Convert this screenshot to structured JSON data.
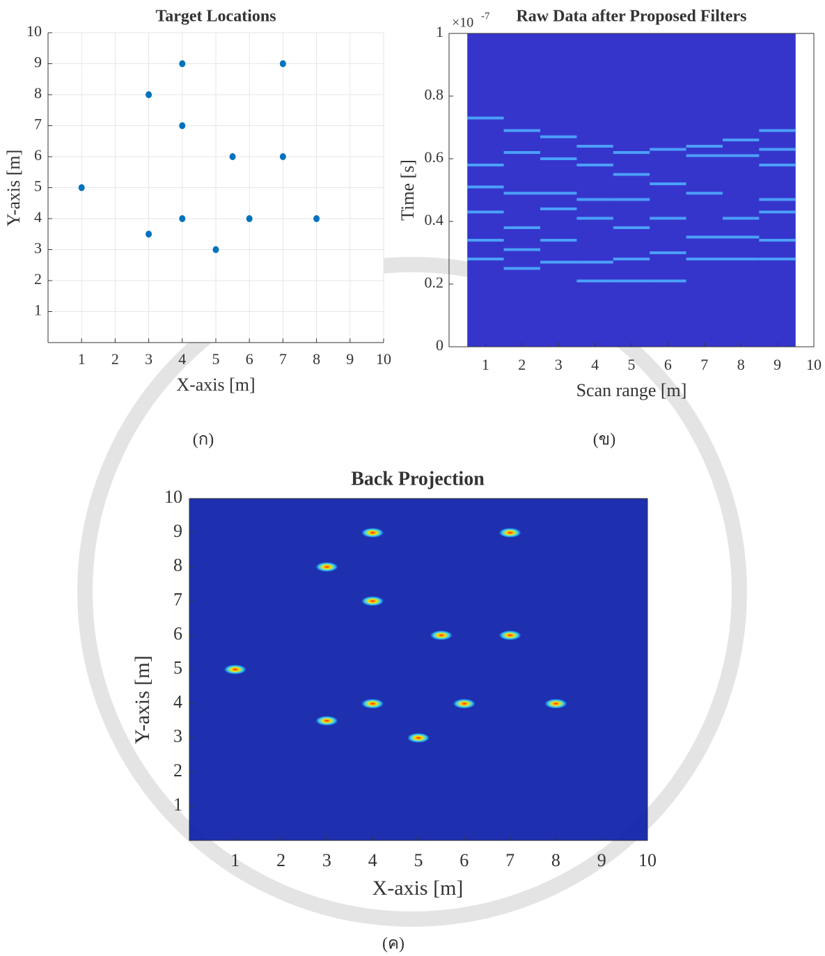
{
  "chart_data": [
    {
      "type": "scatter",
      "title": "Target Locations",
      "xlabel": "X-axis [m]",
      "ylabel": "Y-axis [m]",
      "caption": "(ก)",
      "xlim": [
        0,
        10
      ],
      "ylim": [
        0,
        10
      ],
      "xticks": [
        1,
        2,
        3,
        4,
        5,
        6,
        7,
        8,
        9,
        10
      ],
      "yticks": [
        1,
        2,
        3,
        4,
        5,
        6,
        7,
        8,
        9,
        10
      ],
      "grid": true,
      "color": "#0072bd",
      "x": [
        1,
        3,
        3,
        4,
        4,
        4,
        5,
        5.5,
        6,
        7,
        7,
        8
      ],
      "y": [
        5,
        8,
        3.5,
        9,
        7,
        4,
        3,
        6,
        4,
        9,
        6,
        4
      ]
    },
    {
      "type": "stripes",
      "title": "Raw Data after Proposed Filters",
      "y_multiplier": {
        "base": "×10",
        "exponent": "-7"
      },
      "xlabel": "Scan range [m]",
      "ylabel": "Time [s]",
      "caption": "(ข)",
      "xlim": [
        0,
        10
      ],
      "ylim": [
        0,
        1
      ],
      "xticks": [
        1,
        2,
        3,
        4,
        5,
        6,
        7,
        8,
        9,
        10
      ],
      "yticks": [
        0,
        0.2,
        0.4,
        0.6,
        0.8,
        1
      ],
      "grid": false,
      "background_color": "#3535cc",
      "stripe_color": "#4fb3ff",
      "columns": [
        1,
        2,
        3,
        4,
        5,
        6,
        7,
        8,
        9
      ],
      "stripes": [
        [
          0.73,
          0.58,
          0.51,
          0.43,
          0.34,
          0.28
        ],
        [
          0.69,
          0.62,
          0.49,
          0.38,
          0.31,
          0.25
        ],
        [
          0.67,
          0.6,
          0.49,
          0.44,
          0.34,
          0.27
        ],
        [
          0.64,
          0.58,
          0.47,
          0.41,
          0.27,
          0.21
        ],
        [
          0.62,
          0.55,
          0.47,
          0.38,
          0.28,
          0.21
        ],
        [
          0.63,
          0.52,
          0.41,
          0.3,
          0.21
        ],
        [
          0.64,
          0.61,
          0.49,
          0.35,
          0.28
        ],
        [
          0.66,
          0.61,
          0.41,
          0.35,
          0.28
        ],
        [
          0.69,
          0.63,
          0.58,
          0.47,
          0.43,
          0.34,
          0.28
        ]
      ]
    },
    {
      "type": "peaks",
      "title": "Back Projection",
      "xlabel": "X-axis [m]",
      "ylabel": "Y-axis [m]",
      "caption": "(ค)",
      "xlim": [
        0,
        10
      ],
      "ylim": [
        0,
        10
      ],
      "xticks": [
        1,
        2,
        3,
        4,
        5,
        6,
        7,
        8,
        9,
        10
      ],
      "yticks": [
        1,
        2,
        3,
        4,
        5,
        6,
        7,
        8,
        9,
        10
      ],
      "grid": false,
      "background_color": "#0b1ea8",
      "x": [
        1,
        3,
        3,
        4,
        4,
        4,
        5,
        5.5,
        6,
        7,
        7,
        8
      ],
      "y": [
        5,
        8,
        3.5,
        9,
        7,
        4,
        3,
        6,
        4,
        9,
        6,
        4
      ]
    }
  ]
}
